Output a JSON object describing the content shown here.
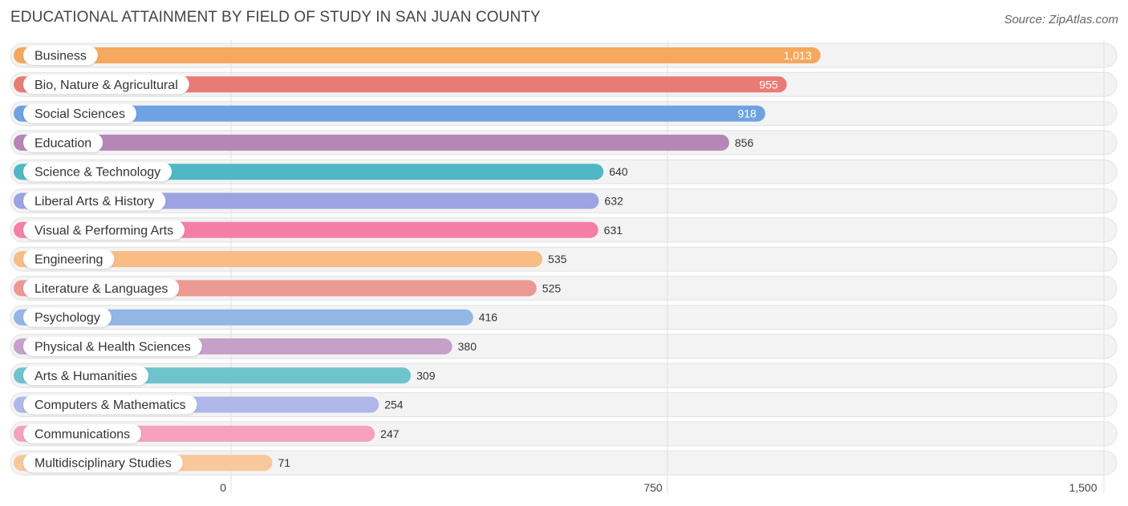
{
  "chart_data": {
    "type": "bar",
    "orientation": "horizontal",
    "title": "EDUCATIONAL ATTAINMENT BY FIELD OF STUDY IN SAN JUAN COUNTY",
    "source": "Source: ZipAtlas.com",
    "xlim": [
      0,
      1500
    ],
    "ticks": [
      {
        "value": 0,
        "label": "0"
      },
      {
        "value": 750,
        "label": "750"
      },
      {
        "value": 1500,
        "label": "1,500"
      }
    ],
    "bars": [
      {
        "label": "Business",
        "value": 1013,
        "value_label": "1,013",
        "color": "#f5a85e"
      },
      {
        "label": "Bio, Nature & Agricultural",
        "value": 955,
        "value_label": "955",
        "color": "#e97b76"
      },
      {
        "label": "Social Sciences",
        "value": 918,
        "value_label": "918",
        "color": "#6fa2e0"
      },
      {
        "label": "Education",
        "value": 856,
        "value_label": "856",
        "color": "#b487b7"
      },
      {
        "label": "Science & Technology",
        "value": 640,
        "value_label": "640",
        "color": "#4fb8c5"
      },
      {
        "label": "Liberal Arts & History",
        "value": 632,
        "value_label": "632",
        "color": "#9ba3e2"
      },
      {
        "label": "Visual & Performing Arts",
        "value": 631,
        "value_label": "631",
        "color": "#f47fa6"
      },
      {
        "label": "Engineering",
        "value": 535,
        "value_label": "535",
        "color": "#f8bd84"
      },
      {
        "label": "Literature & Languages",
        "value": 525,
        "value_label": "525",
        "color": "#ec9893"
      },
      {
        "label": "Psychology",
        "value": 416,
        "value_label": "416",
        "color": "#92b6e6"
      },
      {
        "label": "Physical & Health Sciences",
        "value": 380,
        "value_label": "380",
        "color": "#c6a0c8"
      },
      {
        "label": "Arts & Humanities",
        "value": 309,
        "value_label": "309",
        "color": "#6fc3cd"
      },
      {
        "label": "Computers & Mathematics",
        "value": 254,
        "value_label": "254",
        "color": "#afb6ea"
      },
      {
        "label": "Communications",
        "value": 247,
        "value_label": "247",
        "color": "#f5a0bf"
      },
      {
        "label": "Multidisciplinary Studies",
        "value": 71,
        "value_label": "71",
        "color": "#f8c89a"
      }
    ]
  }
}
